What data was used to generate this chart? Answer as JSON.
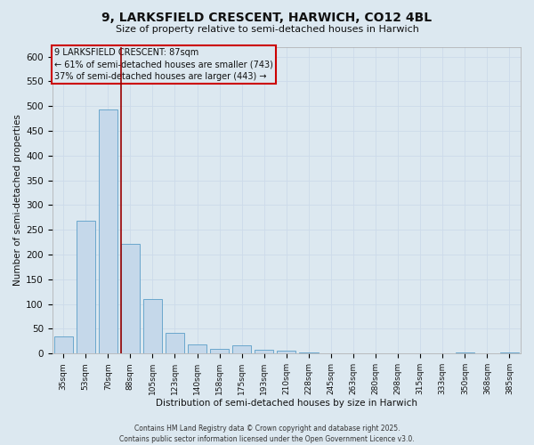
{
  "title": "9, LARKSFIELD CRESCENT, HARWICH, CO12 4BL",
  "subtitle": "Size of property relative to semi-detached houses in Harwich",
  "xlabel": "Distribution of semi-detached houses by size in Harwich",
  "ylabel": "Number of semi-detached properties",
  "footer_line1": "Contains HM Land Registry data © Crown copyright and database right 2025.",
  "footer_line2": "Contains public sector information licensed under the Open Government Licence v3.0.",
  "annotation_line1": "9 LARKSFIELD CRESCENT: 87sqm",
  "annotation_line2": "← 61% of semi-detached houses are smaller (743)",
  "annotation_line3": "37% of semi-detached houses are larger (443) →",
  "property_size": 87,
  "bar_labels": [
    "35sqm",
    "53sqm",
    "70sqm",
    "88sqm",
    "105sqm",
    "123sqm",
    "140sqm",
    "158sqm",
    "175sqm",
    "193sqm",
    "210sqm",
    "228sqm",
    "245sqm",
    "263sqm",
    "280sqm",
    "298sqm",
    "315sqm",
    "333sqm",
    "350sqm",
    "368sqm",
    "385sqm"
  ],
  "bar_values": [
    35,
    268,
    493,
    222,
    110,
    42,
    18,
    10,
    16,
    8,
    5,
    2,
    0,
    0,
    0,
    0,
    0,
    0,
    3,
    0,
    3
  ],
  "vline_bar_index": 3,
  "ylim": [
    0,
    620
  ],
  "yticks": [
    0,
    50,
    100,
    150,
    200,
    250,
    300,
    350,
    400,
    450,
    500,
    550,
    600
  ],
  "bar_color": "#c5d8ea",
  "bar_edge_color": "#5a9ec8",
  "vline_color": "#990000",
  "grid_color": "#ccdaea",
  "background_color": "#dce8f0",
  "text_color": "#111111",
  "footer_color": "#333333"
}
